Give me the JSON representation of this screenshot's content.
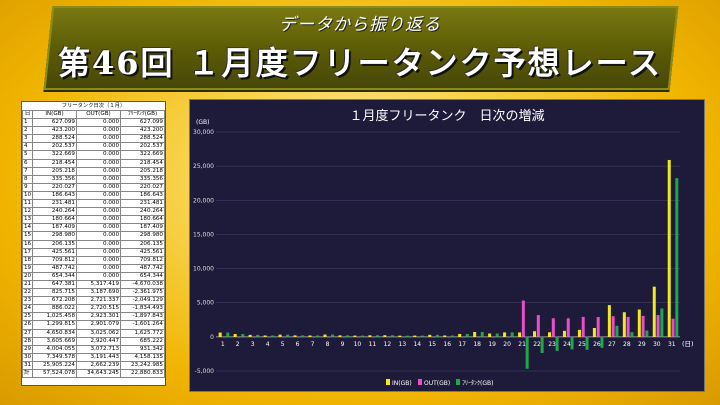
{
  "header": {
    "subtitle": "データから振り返る",
    "title": "第46回 １月度フリータンク予想レース"
  },
  "table": {
    "caption": "フリータンク日次（１月）",
    "columns": [
      "日",
      "IN(GB)",
      "OUT(GB)",
      "ﾌﾘｰﾀﾝｸ(GB)"
    ],
    "rows": [
      [
        "1",
        "627.099",
        "0.000",
        "627.099"
      ],
      [
        "2",
        "423.200",
        "0.000",
        "423.200"
      ],
      [
        "3",
        "288.524",
        "0.000",
        "288.524"
      ],
      [
        "4",
        "202.537",
        "0.000",
        "202.537"
      ],
      [
        "5",
        "322.669",
        "0.000",
        "322.669"
      ],
      [
        "6",
        "218.454",
        "0.000",
        "218.454"
      ],
      [
        "7",
        "205.218",
        "0.000",
        "205.218"
      ],
      [
        "8",
        "335.356",
        "0.000",
        "335.356"
      ],
      [
        "9",
        "220.027",
        "0.000",
        "220.027"
      ],
      [
        "10",
        "186.643",
        "0.000",
        "186.643"
      ],
      [
        "11",
        "231.481",
        "0.000",
        "231.481"
      ],
      [
        "12",
        "240.264",
        "0.000",
        "240.264"
      ],
      [
        "13",
        "180.664",
        "0.000",
        "180.664"
      ],
      [
        "14",
        "187.409",
        "0.000",
        "187.409"
      ],
      [
        "15",
        "298.980",
        "0.000",
        "298.980"
      ],
      [
        "16",
        "206.135",
        "0.000",
        "206.135"
      ],
      [
        "17",
        "425.561",
        "0.000",
        "425.561"
      ],
      [
        "18",
        "709.812",
        "0.000",
        "709.812"
      ],
      [
        "19",
        "487.742",
        "0.000",
        "487.742"
      ],
      [
        "20",
        "654.344",
        "0.000",
        "654.344"
      ],
      [
        "21",
        "647.381",
        "5,317.419",
        "-4,670.038"
      ],
      [
        "22",
        "825.715",
        "3,187.690",
        "-2,361.975"
      ],
      [
        "23",
        "672.208",
        "2,721.337",
        "-2,049.129"
      ],
      [
        "24",
        "886.022",
        "2,720.515",
        "-1,834.493"
      ],
      [
        "25",
        "1,025.458",
        "2,923.301",
        "-1,897.843"
      ],
      [
        "26",
        "1,299.815",
        "2,901.079",
        "-1,601.264"
      ],
      [
        "27",
        "4,650.834",
        "3,025.062",
        "1,625.772"
      ],
      [
        "28",
        "3,605.669",
        "2,920.447",
        "685.222"
      ],
      [
        "29",
        "4,004.055",
        "3,072.713",
        "931.342"
      ],
      [
        "30",
        "7,349.578",
        "3,191.443",
        "4,158.135"
      ],
      [
        "31",
        "25,905.224",
        "2,662.239",
        "23,242.985"
      ],
      [
        "計",
        "57,524.078",
        "34,643.245",
        "22,880.833"
      ]
    ]
  },
  "chart_data": {
    "type": "bar",
    "title": "１月度フリータンク　日次の増減",
    "ylabel": "(GB)",
    "xlabel": "(日)",
    "ylim": [
      -5000,
      30000
    ],
    "yticks": [
      "-5,000",
      "0",
      "5,000",
      "10,000",
      "15,000",
      "20,000",
      "25,000",
      "30,000"
    ],
    "grid": true,
    "legend_position": "bottom",
    "categories": [
      "1",
      "2",
      "3",
      "4",
      "5",
      "6",
      "7",
      "8",
      "9",
      "10",
      "11",
      "12",
      "13",
      "14",
      "15",
      "16",
      "17",
      "18",
      "19",
      "20",
      "21",
      "22",
      "23",
      "24",
      "25",
      "26",
      "27",
      "28",
      "29",
      "30",
      "31"
    ],
    "series": [
      {
        "name": "IN(GB)",
        "color": "#f2ea1e",
        "values": [
          627.099,
          423.2,
          288.524,
          202.537,
          322.669,
          218.454,
          205.218,
          335.356,
          220.027,
          186.643,
          231.481,
          240.264,
          180.664,
          187.409,
          298.98,
          206.135,
          425.561,
          709.812,
          487.742,
          654.344,
          647.381,
          825.715,
          672.208,
          886.022,
          1025.458,
          1299.815,
          4650.834,
          3605.669,
          4004.055,
          7349.578,
          25905.224
        ]
      },
      {
        "name": "OUT(GB)",
        "color": "#e84fc8",
        "values": [
          0,
          0,
          0,
          0,
          0,
          0,
          0,
          0,
          0,
          0,
          0,
          0,
          0,
          0,
          0,
          0,
          0,
          0,
          0,
          0,
          5317.419,
          3187.69,
          2721.337,
          2720.515,
          2923.301,
          2901.079,
          3025.062,
          2920.447,
          3072.713,
          3191.443,
          2662.239
        ]
      },
      {
        "name": "ﾌﾘｰﾀﾝｸ(GB)",
        "color": "#1fa84a",
        "values": [
          627.099,
          423.2,
          288.524,
          202.537,
          322.669,
          218.454,
          205.218,
          335.356,
          220.027,
          186.643,
          231.481,
          240.264,
          180.664,
          187.409,
          298.98,
          206.135,
          425.561,
          709.812,
          487.742,
          654.344,
          -4670.038,
          -2361.975,
          -2049.129,
          -1834.493,
          -1897.843,
          -1601.264,
          1625.772,
          685.222,
          931.342,
          4158.135,
          23242.985
        ]
      }
    ]
  }
}
